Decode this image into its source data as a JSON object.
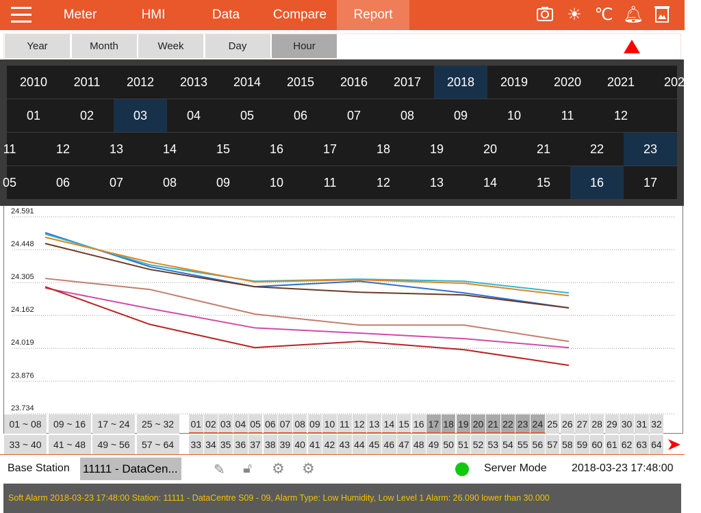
{
  "nav": {
    "tabs": [
      "Meter",
      "HMI",
      "Data",
      "Compare",
      "Report"
    ],
    "selected": "Report"
  },
  "toolbar_icons": [
    "camera-icon",
    "brightness-icon",
    "celsius-icon",
    "bell-icon",
    "trash-image-icon"
  ],
  "celsius_label": "℃",
  "period_tabs": {
    "items": [
      "Year",
      "Month",
      "Week",
      "Day",
      "Hour"
    ],
    "selected": "Hour"
  },
  "picker": {
    "years": [
      "2010",
      "2011",
      "2012",
      "2013",
      "2014",
      "2015",
      "2016",
      "2017",
      "2018",
      "2019",
      "2020",
      "2021",
      "202"
    ],
    "months": [
      "01",
      "02",
      "03",
      "04",
      "05",
      "06",
      "07",
      "08",
      "09",
      "10",
      "11",
      "12"
    ],
    "days": [
      "11",
      "12",
      "13",
      "14",
      "15",
      "16",
      "17",
      "18",
      "19",
      "20",
      "21",
      "22",
      "23"
    ],
    "hours": [
      "05",
      "06",
      "07",
      "08",
      "09",
      "10",
      "11",
      "12",
      "13",
      "14",
      "15",
      "16",
      "17"
    ],
    "selected": {
      "year": "2018",
      "month": "03",
      "day": "23",
      "hour": "16"
    }
  },
  "chart_data": {
    "type": "line",
    "yticks": [
      "24.591",
      "24.448",
      "24.305",
      "24.162",
      "24.019",
      "23.876",
      "23.734"
    ],
    "ylim": [
      23.734,
      24.591
    ],
    "x": [
      0,
      1,
      2,
      3,
      4,
      5
    ],
    "grid": true,
    "series": [
      {
        "color": "#2c6fd0",
        "values": [
          24.522,
          24.374,
          24.287,
          24.311,
          24.26,
          24.195
        ]
      },
      {
        "color": "#34b6c8",
        "values": [
          24.516,
          24.382,
          24.311,
          24.32,
          24.311,
          24.26
        ]
      },
      {
        "color": "#de8520",
        "values": [
          24.502,
          24.394,
          24.308,
          24.317,
          24.302,
          24.248
        ]
      },
      {
        "color": "#6b3a22",
        "values": [
          24.475,
          24.362,
          24.287,
          24.263,
          24.251,
          24.195
        ]
      },
      {
        "color": "#c47e6a",
        "values": [
          24.323,
          24.275,
          24.168,
          24.12,
          24.12,
          24.049
        ]
      },
      {
        "color": "#d04aa8",
        "values": [
          24.281,
          24.192,
          24.108,
          24.085,
          24.061,
          24.022
        ]
      },
      {
        "color": "#b82222",
        "values": [
          24.287,
          24.123,
          24.022,
          24.049,
          24.013,
          23.945
        ]
      }
    ]
  },
  "ranges": {
    "row1": [
      "01 ~ 08",
      "09 ~ 16",
      "17 ~ 24",
      "25 ~ 32"
    ],
    "row2": [
      "33 ~ 40",
      "41 ~ 48",
      "49 ~ 56",
      "57 ~ 64"
    ]
  },
  "channels": {
    "row1": [
      "01",
      "02",
      "03",
      "04",
      "05",
      "06",
      "07",
      "08",
      "09",
      "10",
      "11",
      "12",
      "13",
      "14",
      "15",
      "16",
      "17",
      "18",
      "19",
      "20",
      "21",
      "22",
      "23",
      "24",
      "25",
      "26",
      "27",
      "28",
      "29",
      "30",
      "31",
      "32"
    ],
    "row2": [
      "33",
      "34",
      "35",
      "36",
      "37",
      "38",
      "39",
      "40",
      "41",
      "42",
      "43",
      "44",
      "45",
      "46",
      "47",
      "48",
      "49",
      "50",
      "51",
      "52",
      "53",
      "54",
      "55",
      "56",
      "57",
      "58",
      "59",
      "60",
      "61",
      "62",
      "63",
      "64"
    ],
    "highlighted": [
      "17",
      "18",
      "19",
      "20",
      "21",
      "22",
      "23",
      "24"
    ],
    "underlined_count": 24
  },
  "status": {
    "base_station_label": "Base Station",
    "station_value": "11111 - DataCen...",
    "mode": "Server Mode",
    "mode_color": "#11c811",
    "datetime": "2018-03-23 17:48:00"
  },
  "alarm": "Soft Alarm 2018-03-23 17:48:00 Station: 11111 - DataCentre S09 - 09, Alarm Type: Low Humidity, Low Level 1 Alarm: 26.090 lower than 30.000"
}
